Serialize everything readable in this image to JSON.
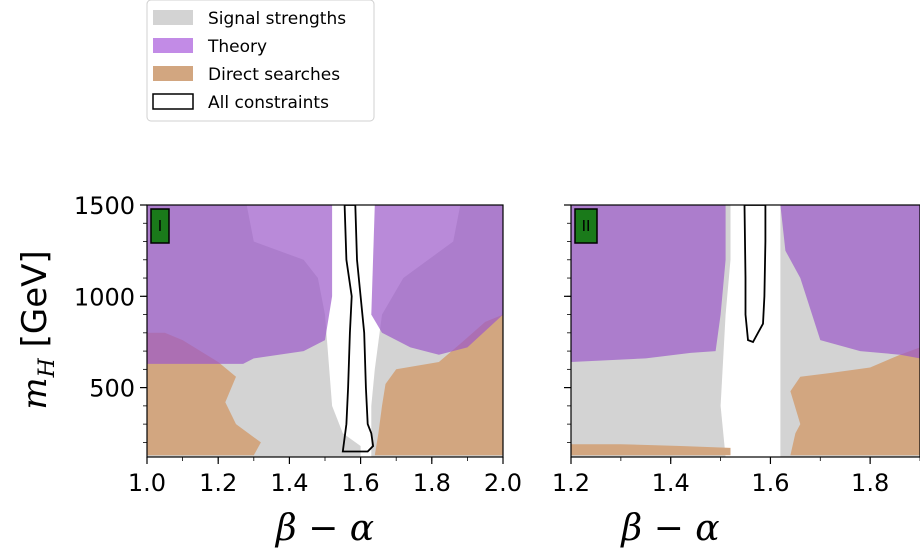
{
  "legend": {
    "entries": [
      {
        "label": "Signal strengths",
        "color": "#d3d3d3",
        "style": "fill"
      },
      {
        "label": "Theory",
        "color": "#c28be6",
        "style": "fill"
      },
      {
        "label": "Direct searches",
        "color": "#d2a680",
        "style": "fill"
      },
      {
        "label": "All constraints",
        "color": "#000000",
        "style": "outline"
      }
    ]
  },
  "chart_data": [
    {
      "type": "contour-region",
      "panel_label": "I",
      "panel_label_color": "#1a7a1a",
      "xlabel": "β − α",
      "ylabel": "m_H [GeV]",
      "xlim": [
        1.0,
        2.0
      ],
      "ylim": [
        120,
        1500
      ],
      "xticks": [
        1.0,
        1.2,
        1.4,
        1.6,
        1.8,
        2.0
      ],
      "xtick_labels": [
        "1.0",
        "1.2",
        "1.4",
        "1.6",
        "1.8",
        "2.0"
      ],
      "yticks": [
        500,
        1000,
        1500
      ],
      "ytick_labels": [
        "500",
        "1000",
        "1500"
      ],
      "regions": {
        "signal_strengths": [
          [
            1.0,
            120
          ],
          [
            1.6,
            120
          ],
          [
            1.6,
            180
          ],
          [
            1.55,
            250
          ],
          [
            1.52,
            400
          ],
          [
            1.5,
            900
          ],
          [
            1.48,
            1100
          ],
          [
            1.44,
            1200
          ],
          [
            1.3,
            1300
          ],
          [
            1.28,
            1500
          ],
          [
            1.0,
            1500
          ]
        ],
        "signal_strengths_right": [
          [
            1.63,
            120
          ],
          [
            2.0,
            120
          ],
          [
            2.0,
            1500
          ],
          [
            1.88,
            1500
          ],
          [
            1.86,
            1300
          ],
          [
            1.72,
            1100
          ],
          [
            1.66,
            900
          ],
          [
            1.64,
            600
          ],
          [
            1.63,
            400
          ]
        ],
        "theory_left": [
          [
            1.0,
            630
          ],
          [
            1.27,
            630
          ],
          [
            1.3,
            660
          ],
          [
            1.44,
            700
          ],
          [
            1.5,
            760
          ],
          [
            1.52,
            1000
          ],
          [
            1.52,
            1500
          ],
          [
            1.0,
            1500
          ]
        ],
        "theory_right": [
          [
            1.64,
            1500
          ],
          [
            1.63,
            900
          ],
          [
            1.66,
            800
          ],
          [
            1.74,
            720
          ],
          [
            1.82,
            680
          ],
          [
            1.9,
            720
          ],
          [
            2.0,
            900
          ],
          [
            2.0,
            1500
          ]
        ],
        "direct_left": [
          [
            1.0,
            130
          ],
          [
            1.3,
            130
          ],
          [
            1.32,
            200
          ],
          [
            1.25,
            300
          ],
          [
            1.22,
            420
          ],
          [
            1.25,
            560
          ],
          [
            1.2,
            640
          ],
          [
            1.1,
            760
          ],
          [
            1.05,
            800
          ],
          [
            1.0,
            800
          ]
        ],
        "direct_right": [
          [
            1.64,
            130
          ],
          [
            2.0,
            130
          ],
          [
            2.0,
            900
          ],
          [
            1.95,
            860
          ],
          [
            1.88,
            740
          ],
          [
            1.82,
            640
          ],
          [
            1.7,
            600
          ],
          [
            1.67,
            520
          ],
          [
            1.66,
            400
          ],
          [
            1.65,
            250
          ]
        ],
        "all_constraints": [
          [
            1.55,
            150
          ],
          [
            1.56,
            300
          ],
          [
            1.565,
            500
          ],
          [
            1.57,
            800
          ],
          [
            1.575,
            1000
          ],
          [
            1.56,
            1200
          ],
          [
            1.555,
            1500
          ],
          [
            1.585,
            1500
          ],
          [
            1.59,
            1200
          ],
          [
            1.6,
            1000
          ],
          [
            1.61,
            800
          ],
          [
            1.615,
            500
          ],
          [
            1.62,
            300
          ],
          [
            1.63,
            250
          ],
          [
            1.635,
            180
          ],
          [
            1.62,
            150
          ]
        ]
      }
    },
    {
      "type": "contour-region",
      "panel_label": "II",
      "panel_label_color": "#1a7a1a",
      "xlabel": "β − α",
      "xlim": [
        1.2,
        1.9
      ],
      "ylim": [
        120,
        1500
      ],
      "xticks": [
        1.2,
        1.4,
        1.6,
        1.8
      ],
      "xtick_labels": [
        "1.2",
        "1.4",
        "1.6",
        "1.8"
      ],
      "regions": {
        "signal_strengths": [
          [
            1.2,
            120
          ],
          [
            1.51,
            120
          ],
          [
            1.5,
            400
          ],
          [
            1.51,
            900
          ],
          [
            1.52,
            1200
          ],
          [
            1.52,
            1500
          ],
          [
            1.2,
            1500
          ]
        ],
        "signal_strengths_right": [
          [
            1.62,
            120
          ],
          [
            1.9,
            120
          ],
          [
            1.9,
            1500
          ],
          [
            1.62,
            1500
          ]
        ],
        "theory_left": [
          [
            1.2,
            640
          ],
          [
            1.35,
            660
          ],
          [
            1.44,
            690
          ],
          [
            1.49,
            700
          ],
          [
            1.5,
            900
          ],
          [
            1.51,
            1200
          ],
          [
            1.51,
            1500
          ],
          [
            1.2,
            1500
          ]
        ],
        "theory_right": [
          [
            1.62,
            1500
          ],
          [
            1.63,
            1250
          ],
          [
            1.66,
            1100
          ],
          [
            1.7,
            760
          ],
          [
            1.78,
            700
          ],
          [
            1.86,
            680
          ],
          [
            1.9,
            660
          ],
          [
            1.9,
            1500
          ]
        ],
        "direct_left": [
          [
            1.2,
            130
          ],
          [
            1.52,
            130
          ],
          [
            1.52,
            170
          ],
          [
            1.42,
            180
          ],
          [
            1.3,
            190
          ],
          [
            1.2,
            190
          ]
        ],
        "direct_right": [
          [
            1.64,
            130
          ],
          [
            1.9,
            130
          ],
          [
            1.9,
            720
          ],
          [
            1.86,
            680
          ],
          [
            1.8,
            610
          ],
          [
            1.72,
            580
          ],
          [
            1.66,
            560
          ],
          [
            1.64,
            480
          ],
          [
            1.66,
            300
          ],
          [
            1.65,
            250
          ]
        ],
        "all_constraints": [
          [
            1.555,
            760
          ],
          [
            1.55,
            900
          ],
          [
            1.55,
            1100
          ],
          [
            1.548,
            1500
          ],
          [
            1.59,
            1500
          ],
          [
            1.59,
            1300
          ],
          [
            1.588,
            1000
          ],
          [
            1.585,
            850
          ],
          [
            1.575,
            800
          ],
          [
            1.565,
            750
          ]
        ]
      }
    }
  ]
}
